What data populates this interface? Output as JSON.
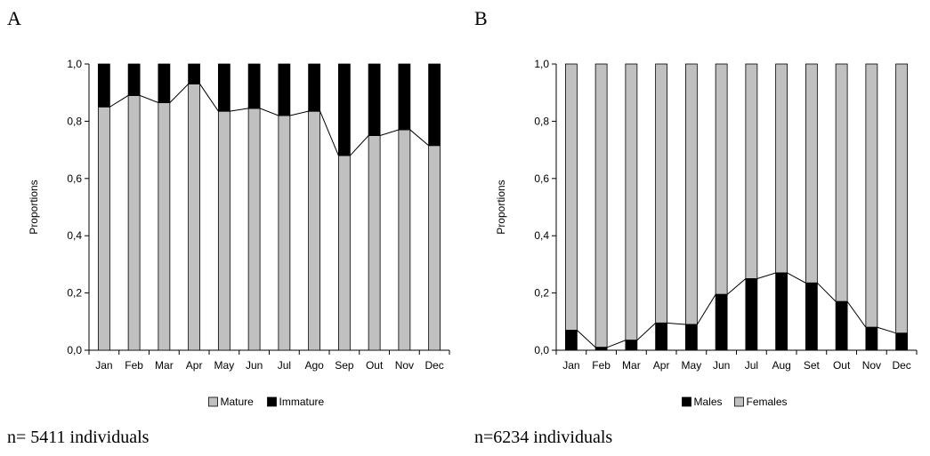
{
  "charts": [
    {
      "panel_letter": "A",
      "n_label": "n= 5411 individuals",
      "chart_data": {
        "type": "bar",
        "stacked": true,
        "categories": [
          "Jan",
          "Feb",
          "Mar",
          "Apr",
          "May",
          "Jun",
          "Jul",
          "Ago",
          "Sep",
          "Out",
          "Nov",
          "Dec"
        ],
        "series": [
          {
            "name": "Mature",
            "color": "#c0c0c0",
            "values": [
              0.85,
              0.89,
              0.865,
              0.93,
              0.835,
              0.845,
              0.82,
              0.835,
              0.68,
              0.75,
              0.77,
              0.715
            ]
          },
          {
            "name": "Immature",
            "color": "#000000",
            "values": [
              0.15,
              0.11,
              0.135,
              0.07,
              0.165,
              0.155,
              0.18,
              0.165,
              0.32,
              0.25,
              0.23,
              0.285
            ]
          }
        ],
        "line_follows_series": 0,
        "ylabel": "Proportions",
        "ylim": [
          0,
          1
        ],
        "yticks": [
          "0,0",
          "0,2",
          "0,4",
          "0,6",
          "0,8",
          "1,0"
        ],
        "legend": [
          {
            "label": "Mature",
            "color": "#c0c0c0"
          },
          {
            "label": "Immature",
            "color": "#000000"
          }
        ],
        "legend_position": "bottom"
      }
    },
    {
      "panel_letter": "B",
      "n_label": "n=6234 individuals",
      "chart_data": {
        "type": "bar",
        "stacked": true,
        "categories": [
          "Jan",
          "Feb",
          "Mar",
          "Apr",
          "May",
          "Jun",
          "Jul",
          "Aug",
          "Set",
          "Out",
          "Nov",
          "Dec"
        ],
        "series": [
          {
            "name": "Males",
            "color": "#000000",
            "values": [
              0.07,
              0.01,
              0.035,
              0.095,
              0.09,
              0.195,
              0.25,
              0.27,
              0.235,
              0.17,
              0.08,
              0.06
            ]
          },
          {
            "name": "Females",
            "color": "#c0c0c0",
            "values": [
              0.93,
              0.99,
              0.965,
              0.905,
              0.91,
              0.805,
              0.75,
              0.73,
              0.765,
              0.83,
              0.92,
              0.94
            ]
          }
        ],
        "line_follows_series": 0,
        "ylabel": "Proportions",
        "ylim": [
          0,
          1
        ],
        "yticks": [
          "0,0",
          "0,2",
          "0,4",
          "0,6",
          "0,8",
          "1,0"
        ],
        "legend": [
          {
            "label": "Males",
            "color": "#000000"
          },
          {
            "label": "Females",
            "color": "#c0c0c0"
          }
        ],
        "legend_position": "bottom"
      }
    }
  ]
}
